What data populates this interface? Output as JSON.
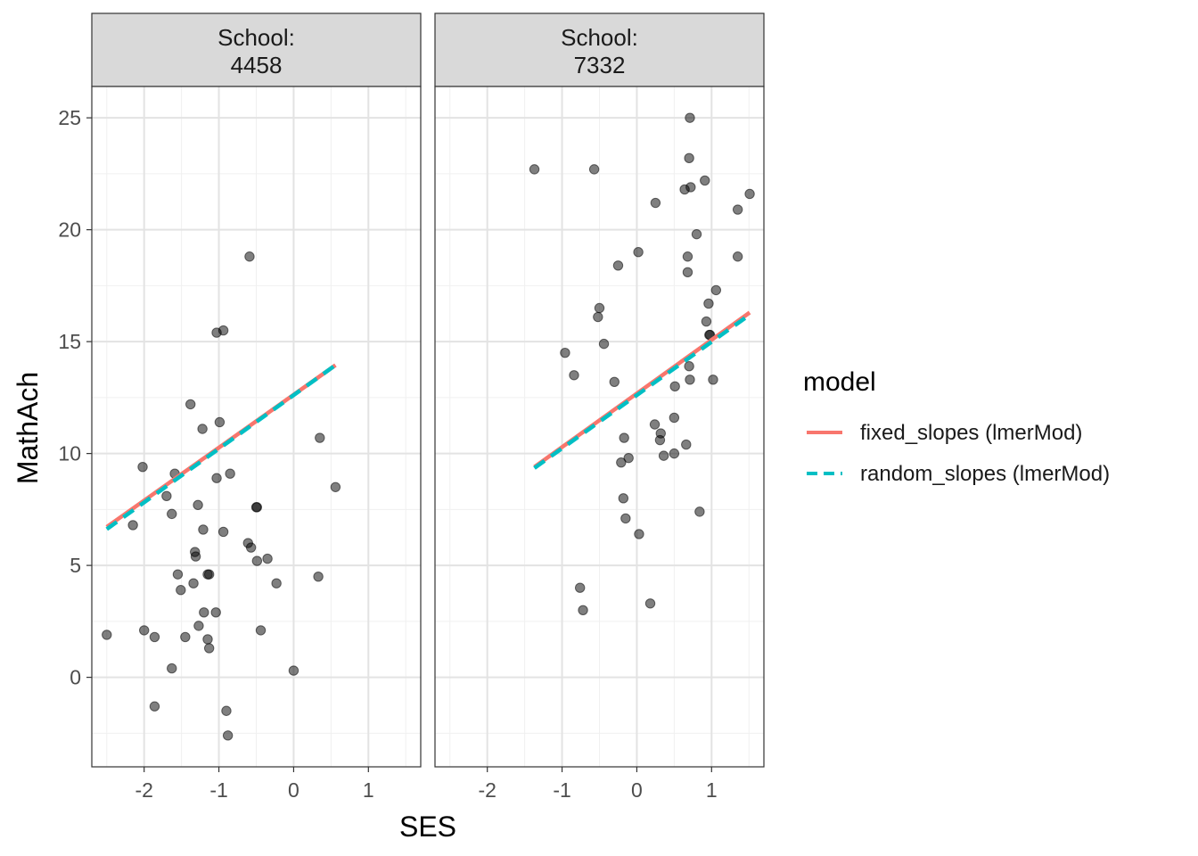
{
  "chart_data": {
    "type": "scatter",
    "xlabel": "SES",
    "ylabel": "MathAch",
    "xlim": [
      -2.7,
      1.7
    ],
    "ylim": [
      -4.0,
      26.4
    ],
    "x_ticks": [
      -2,
      -1,
      0,
      1
    ],
    "y_ticks": [
      0,
      5,
      10,
      15,
      20,
      25
    ],
    "grid": true,
    "legend": {
      "title": "model",
      "position": "right",
      "entries": [
        {
          "name": "fixed_slopes (lmerMod)",
          "color": "#F8766D",
          "style": "solid"
        },
        {
          "name": "random_slopes (lmerMod)",
          "color": "#00BFC4",
          "style": "dashed"
        }
      ]
    },
    "panels": [
      {
        "strip_line1": "School:",
        "strip_line2": "4458",
        "points": [
          [
            -2.5,
            1.9
          ],
          [
            -2.15,
            6.8
          ],
          [
            -2.02,
            9.4
          ],
          [
            -2.0,
            2.1
          ],
          [
            -1.86,
            -1.3
          ],
          [
            -1.86,
            1.8
          ],
          [
            -1.7,
            8.1
          ],
          [
            -1.63,
            7.3
          ],
          [
            -1.63,
            0.4
          ],
          [
            -1.59,
            9.1
          ],
          [
            -1.55,
            4.6
          ],
          [
            -1.51,
            3.9
          ],
          [
            -1.45,
            1.8
          ],
          [
            -1.38,
            12.2
          ],
          [
            -1.34,
            4.2
          ],
          [
            -1.32,
            5.6
          ],
          [
            -1.31,
            5.4
          ],
          [
            -1.28,
            7.7
          ],
          [
            -1.27,
            2.3
          ],
          [
            -1.22,
            11.1
          ],
          [
            -1.21,
            6.6
          ],
          [
            -1.2,
            2.9
          ],
          [
            -1.15,
            4.6
          ],
          [
            -1.15,
            1.7
          ],
          [
            -1.13,
            1.3
          ],
          [
            -1.13,
            4.6
          ],
          [
            -1.04,
            2.9
          ],
          [
            -1.03,
            15.4
          ],
          [
            -1.03,
            8.9
          ],
          [
            -0.99,
            11.4
          ],
          [
            -0.94,
            15.5
          ],
          [
            -0.94,
            6.5
          ],
          [
            -0.9,
            -1.5
          ],
          [
            -0.88,
            -2.6
          ],
          [
            -0.85,
            9.1
          ],
          [
            -0.61,
            6.0
          ],
          [
            -0.59,
            18.8
          ],
          [
            -0.57,
            5.8
          ],
          [
            -0.5,
            7.6
          ],
          [
            -0.49,
            7.6
          ],
          [
            -0.49,
            5.2
          ],
          [
            -0.44,
            2.1
          ],
          [
            -0.35,
            5.3
          ],
          [
            -0.23,
            4.2
          ],
          [
            0.0,
            0.3
          ],
          [
            0.33,
            4.5
          ],
          [
            0.35,
            10.7
          ],
          [
            0.56,
            8.5
          ]
        ],
        "fixed_line": {
          "x": [
            -2.5,
            0.56
          ],
          "y": [
            6.72,
            13.95
          ]
        },
        "random_line": {
          "x": [
            -2.5,
            0.56
          ],
          "y": [
            6.62,
            13.95
          ]
        }
      },
      {
        "strip_line1": "School:",
        "strip_line2": "7332",
        "points": [
          [
            -1.37,
            22.7
          ],
          [
            -0.96,
            14.5
          ],
          [
            -0.84,
            13.5
          ],
          [
            -0.76,
            4.0
          ],
          [
            -0.72,
            3.0
          ],
          [
            -0.57,
            22.7
          ],
          [
            -0.52,
            16.1
          ],
          [
            -0.5,
            16.5
          ],
          [
            -0.44,
            14.9
          ],
          [
            -0.3,
            13.2
          ],
          [
            -0.25,
            18.4
          ],
          [
            -0.21,
            9.6
          ],
          [
            -0.18,
            8.0
          ],
          [
            -0.17,
            10.7
          ],
          [
            -0.15,
            7.1
          ],
          [
            -0.11,
            9.8
          ],
          [
            0.02,
            19.0
          ],
          [
            0.03,
            6.4
          ],
          [
            0.18,
            3.3
          ],
          [
            0.24,
            11.3
          ],
          [
            0.25,
            21.2
          ],
          [
            0.31,
            10.6
          ],
          [
            0.32,
            10.9
          ],
          [
            0.36,
            9.9
          ],
          [
            0.5,
            10.0
          ],
          [
            0.5,
            11.6
          ],
          [
            0.51,
            13.0
          ],
          [
            0.64,
            21.8
          ],
          [
            0.66,
            10.4
          ],
          [
            0.68,
            18.8
          ],
          [
            0.68,
            18.1
          ],
          [
            0.7,
            23.2
          ],
          [
            0.7,
            13.9
          ],
          [
            0.71,
            25.0
          ],
          [
            0.71,
            13.3
          ],
          [
            0.72,
            21.9
          ],
          [
            0.8,
            19.8
          ],
          [
            0.84,
            7.4
          ],
          [
            0.91,
            22.2
          ],
          [
            0.93,
            15.9
          ],
          [
            0.96,
            16.7
          ],
          [
            0.97,
            15.3
          ],
          [
            0.98,
            15.3
          ],
          [
            1.02,
            13.3
          ],
          [
            1.06,
            17.3
          ],
          [
            1.35,
            18.8
          ],
          [
            1.35,
            20.9
          ],
          [
            1.51,
            21.6
          ]
        ],
        "fixed_line": {
          "x": [
            -1.37,
            1.51
          ],
          "y": [
            9.4,
            16.3
          ]
        },
        "random_line": {
          "x": [
            -1.37,
            1.51
          ],
          "y": [
            9.35,
            16.2
          ]
        }
      }
    ]
  }
}
